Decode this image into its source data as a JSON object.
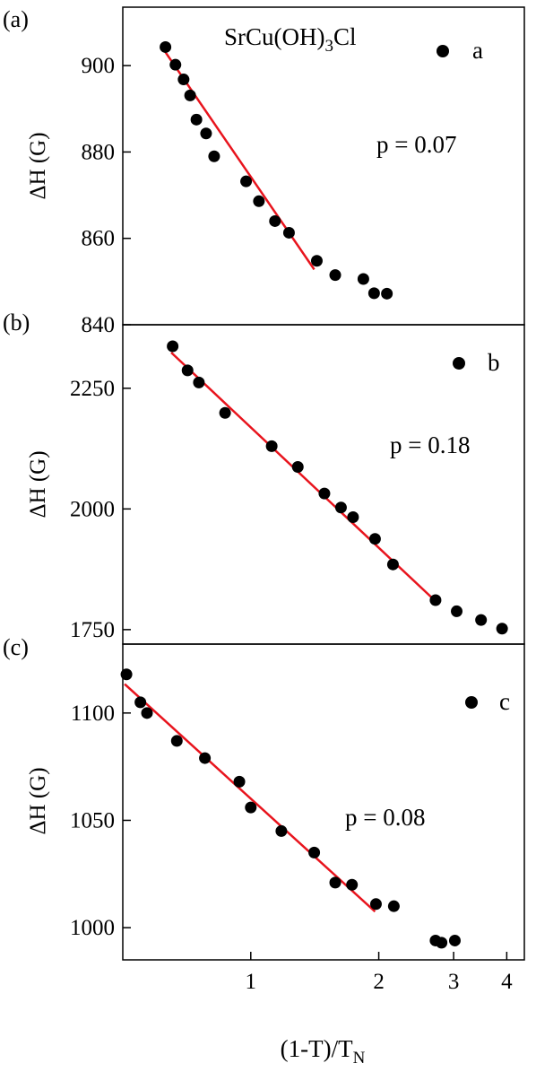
{
  "chart_data": [
    {
      "type": "scatter",
      "panel_label": "(a)",
      "title": "SrCu(OH)₃Cl",
      "ylabel": "ΔH (G)",
      "legend": "a",
      "annotation": "p = 0.07",
      "ylim": [
        840,
        910
      ],
      "yticks": [
        "840",
        "860",
        "880",
        "900"
      ],
      "x_scale": "log",
      "series": [
        {
          "points": [
            {
              "x": 0.63,
              "y": 904.3
            },
            {
              "x": 0.665,
              "y": 900.2
            },
            {
              "x": 0.695,
              "y": 896.8
            },
            {
              "x": 0.72,
              "y": 893.1
            },
            {
              "x": 0.745,
              "y": 887.5
            },
            {
              "x": 0.785,
              "y": 884.3
            },
            {
              "x": 0.82,
              "y": 879.0
            },
            {
              "x": 0.975,
              "y": 873.2
            },
            {
              "x": 1.045,
              "y": 868.6
            },
            {
              "x": 1.14,
              "y": 864.0
            },
            {
              "x": 1.23,
              "y": 861.3
            },
            {
              "x": 1.43,
              "y": 854.8
            },
            {
              "x": 1.58,
              "y": 851.5
            },
            {
              "x": 1.84,
              "y": 850.6
            },
            {
              "x": 1.95,
              "y": 847.3
            },
            {
              "x": 2.09,
              "y": 847.2
            }
          ]
        }
      ],
      "fit_line": {
        "x": [
          0.625,
          1.41
        ],
        "y": [
          903.6,
          852.8
        ],
        "color": "#e8141d"
      }
    },
    {
      "type": "scatter",
      "panel_label": "(b)",
      "ylabel": "ΔH (G)",
      "legend": "b",
      "annotation": "p = 0.18",
      "ylim": [
        1720,
        2350
      ],
      "yticks": [
        "1750",
        "2000",
        "2250"
      ],
      "x_scale": "log",
      "series": [
        {
          "points": [
            {
              "x": 0.655,
              "y": 2337
            },
            {
              "x": 0.71,
              "y": 2287
            },
            {
              "x": 0.755,
              "y": 2262
            },
            {
              "x": 0.87,
              "y": 2199
            },
            {
              "x": 1.12,
              "y": 2130
            },
            {
              "x": 1.29,
              "y": 2087
            },
            {
              "x": 1.49,
              "y": 2032
            },
            {
              "x": 1.63,
              "y": 2003
            },
            {
              "x": 1.74,
              "y": 1983
            },
            {
              "x": 1.96,
              "y": 1938
            },
            {
              "x": 2.16,
              "y": 1885
            },
            {
              "x": 2.72,
              "y": 1811
            },
            {
              "x": 3.05,
              "y": 1788
            },
            {
              "x": 3.48,
              "y": 1770
            },
            {
              "x": 3.9,
              "y": 1752
            }
          ]
        }
      ],
      "fit_line": {
        "x": [
          0.65,
          2.75
        ],
        "y": [
          2324,
          1805
        ],
        "color": "#e8141d"
      }
    },
    {
      "type": "scatter",
      "panel_label": "(c)",
      "ylabel": "ΔH (G)",
      "legend": "c",
      "annotation": "p = 0.08",
      "ylim": [
        985,
        1125
      ],
      "yticks": [
        "1000",
        "1050",
        "1100"
      ],
      "x_scale": "log",
      "xlabel": "(1-T)/T",
      "xlabel_sub": "N",
      "xticks": [
        "1",
        "2",
        "3",
        "4"
      ],
      "xlim": [
        0.5,
        4.4
      ],
      "series": [
        {
          "points": [
            {
              "x": 0.51,
              "y": 1118
            },
            {
              "x": 0.55,
              "y": 1105
            },
            {
              "x": 0.57,
              "y": 1100
            },
            {
              "x": 0.67,
              "y": 1087
            },
            {
              "x": 0.78,
              "y": 1079
            },
            {
              "x": 0.94,
              "y": 1068
            },
            {
              "x": 1.0,
              "y": 1056
            },
            {
              "x": 1.18,
              "y": 1045
            },
            {
              "x": 1.41,
              "y": 1035
            },
            {
              "x": 1.58,
              "y": 1021
            },
            {
              "x": 1.73,
              "y": 1020
            },
            {
              "x": 1.97,
              "y": 1011
            },
            {
              "x": 2.17,
              "y": 1010
            },
            {
              "x": 2.72,
              "y": 994
            },
            {
              "x": 2.81,
              "y": 993
            },
            {
              "x": 3.02,
              "y": 994
            }
          ]
        }
      ],
      "fit_line": {
        "x": [
          0.505,
          1.96
        ],
        "y": [
          1113.5,
          1007.5
        ],
        "color": "#e8141d"
      }
    }
  ]
}
